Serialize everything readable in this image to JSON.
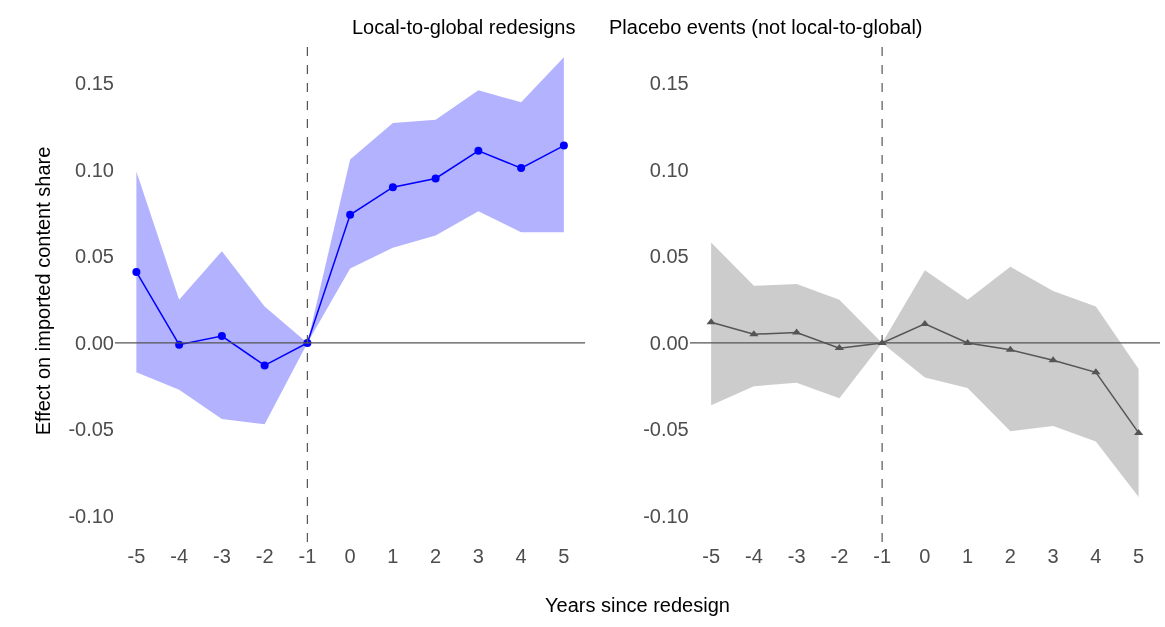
{
  "chart_data": [
    {
      "type": "line",
      "title": "Local-to-global redesigns",
      "xlabel": "Years since redesign",
      "ylabel": "Effect on imported content share",
      "x": [
        -5,
        -4,
        -3,
        -2,
        -1,
        0,
        1,
        2,
        3,
        4,
        5
      ],
      "series": [
        {
          "color": "#0000ff",
          "marker": "circle",
          "values": [
            0.041,
            -0.001,
            0.004,
            -0.013,
            0,
            0.074,
            0.09,
            0.095,
            0.111,
            0.101,
            0.114
          ],
          "lower": [
            -0.017,
            -0.027,
            -0.044,
            -0.047,
            0,
            0.043,
            0.055,
            0.062,
            0.076,
            0.064,
            0.064
          ],
          "upper": [
            0.099,
            0.025,
            0.053,
            0.021,
            0,
            0.106,
            0.127,
            0.129,
            0.146,
            0.139,
            0.165
          ]
        }
      ],
      "xlim": [
        -5.5,
        5.5
      ],
      "ylim": [
        -0.115,
        0.175
      ],
      "xticks": [
        -5,
        -4,
        -3,
        -2,
        -1,
        0,
        1,
        2,
        3,
        4,
        5
      ],
      "yticks": [
        {
          "value": -0.1,
          "label": "-0.10"
        },
        {
          "value": -0.05,
          "label": "-0.05"
        },
        {
          "value": 0,
          "label": "0.00"
        },
        {
          "value": 0.05,
          "label": "0.05"
        },
        {
          "value": 0.1,
          "label": "0.10"
        },
        {
          "value": 0.15,
          "label": "0.15"
        }
      ],
      "ref_lines": [
        {
          "axis": "y",
          "value": 0,
          "color": "#555555",
          "line_style": "solid"
        },
        {
          "axis": "x",
          "value": -1,
          "color": "#555555",
          "line_style": "dashed"
        }
      ]
    },
    {
      "type": "line",
      "title": "Placebo events (not local-to-global)",
      "x": [
        -5,
        -4,
        -3,
        -2,
        -1,
        0,
        1,
        2,
        3,
        4,
        5
      ],
      "series": [
        {
          "color": "#555555",
          "marker": "triangle",
          "values": [
            0.012,
            0.005,
            0.006,
            -0.003,
            0,
            0.011,
            0.0,
            -0.004,
            -0.01,
            -0.017,
            -0.052
          ],
          "lower": [
            -0.036,
            -0.025,
            -0.023,
            -0.032,
            0,
            -0.02,
            -0.026,
            -0.051,
            -0.048,
            -0.057,
            -0.089
          ],
          "upper": [
            0.058,
            0.033,
            0.034,
            0.025,
            0,
            0.042,
            0.025,
            0.044,
            0.03,
            0.021,
            -0.015
          ]
        }
      ],
      "xlim": [
        -5.5,
        5.5
      ],
      "ylim": [
        -0.115,
        0.175
      ],
      "xticks": [
        -5,
        -4,
        -3,
        -2,
        -1,
        0,
        1,
        2,
        3,
        4,
        5
      ],
      "yticks": [
        {
          "value": -0.1,
          "label": "-0.10"
        },
        {
          "value": -0.05,
          "label": "-0.05"
        },
        {
          "value": 0,
          "label": "0.00"
        },
        {
          "value": 0.05,
          "label": "0.05"
        },
        {
          "value": 0.1,
          "label": "0.10"
        },
        {
          "value": 0.15,
          "label": "0.15"
        }
      ],
      "ref_lines": [
        {
          "axis": "y",
          "value": 0,
          "color": "#555555",
          "line_style": "solid"
        },
        {
          "axis": "x",
          "value": -1,
          "color": "#555555",
          "line_style": "dashed"
        }
      ]
    }
  ]
}
